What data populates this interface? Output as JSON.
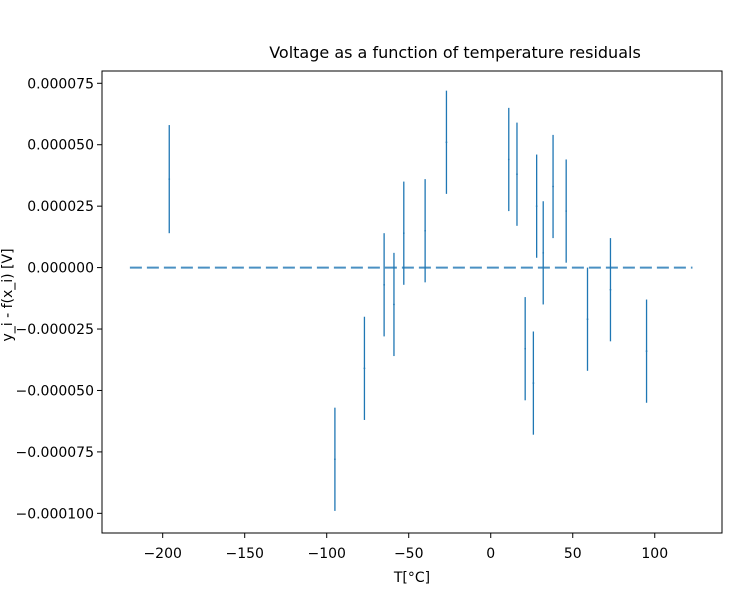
{
  "chart_data": {
    "type": "scatter",
    "title": "Voltage as a function of temperature residuals",
    "xlabel": "T[°C]",
    "ylabel": "y_i - f(x_i) [V]",
    "xlim": [
      -237,
      141
    ],
    "ylim": [
      -0.000108,
      8e-05
    ],
    "x_ticks": [
      -200,
      -150,
      -100,
      -50,
      0,
      50,
      100
    ],
    "x_tick_labels": [
      "−200",
      "−150",
      "−100",
      "−50",
      "0",
      "50",
      "100"
    ],
    "y_ticks": [
      7.5e-05,
      5e-05,
      2.5e-05,
      0,
      -2.5e-05,
      -5e-05,
      -7.5e-05,
      -0.0001
    ],
    "y_tick_labels": [
      "0.000075",
      "0.000050",
      "0.000025",
      "0.000000",
      "−0.000025",
      "−0.000050",
      "−0.000075",
      "−0.000100"
    ],
    "grid": false,
    "zero_line": {
      "y": 0,
      "x_range": [
        -220,
        123
      ],
      "style": "dashed",
      "color": "#4a90c2"
    },
    "series": [
      {
        "color": "#1f77b4",
        "points": [
          {
            "x": -196,
            "y": 3.6e-05,
            "yerr": 2.2e-05
          },
          {
            "x": -95,
            "y": -7.8e-05,
            "yerr": 2.1e-05
          },
          {
            "x": -77,
            "y": -4.1e-05,
            "yerr": 2.1e-05
          },
          {
            "x": -65,
            "y": -7e-06,
            "yerr": 2.1e-05
          },
          {
            "x": -59,
            "y": -1.5e-05,
            "yerr": 2.1e-05
          },
          {
            "x": -53,
            "y": 1.4e-05,
            "yerr": 2.1e-05
          },
          {
            "x": -40,
            "y": 1.5e-05,
            "yerr": 2.1e-05
          },
          {
            "x": -27,
            "y": 5.1e-05,
            "yerr": 2.1e-05
          },
          {
            "x": 11,
            "y": 4.4e-05,
            "yerr": 2.1e-05
          },
          {
            "x": 16,
            "y": 3.8e-05,
            "yerr": 2.1e-05
          },
          {
            "x": 21,
            "y": -3.3e-05,
            "yerr": 2.1e-05
          },
          {
            "x": 26,
            "y": -4.7e-05,
            "yerr": 2.1e-05
          },
          {
            "x": 28,
            "y": 2.5e-05,
            "yerr": 2.1e-05
          },
          {
            "x": 32,
            "y": 6e-06,
            "yerr": 2.1e-05
          },
          {
            "x": 38,
            "y": 3.3e-05,
            "yerr": 2.1e-05
          },
          {
            "x": 46,
            "y": 2.3e-05,
            "yerr": 2.1e-05
          },
          {
            "x": 59,
            "y": -2.1e-05,
            "yerr": 2.1e-05
          },
          {
            "x": 73,
            "y": -9e-06,
            "yerr": 2.1e-05
          },
          {
            "x": 95,
            "y": -3.4e-05,
            "yerr": 2.1e-05
          }
        ]
      }
    ]
  }
}
